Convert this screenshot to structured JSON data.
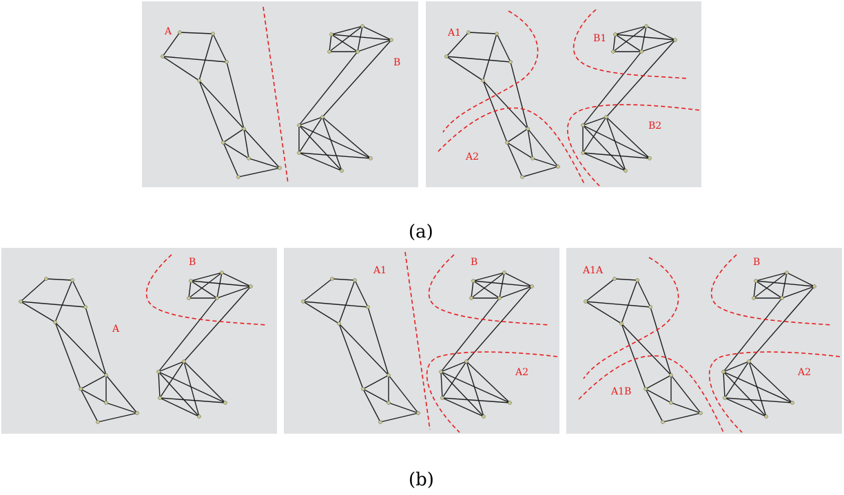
{
  "captions": {
    "a": "(a)",
    "b": "(b)"
  },
  "colors": {
    "panel_bg": "#dfe1e3",
    "edge": "#1d1d1d",
    "partition_line": "#e81c1c",
    "label": "#e81c1c"
  },
  "panels": [
    {
      "id": "a1",
      "labels": [
        "A",
        "B"
      ]
    },
    {
      "id": "a2",
      "labels": [
        "A1",
        "B1",
        "B2",
        "A2"
      ]
    },
    {
      "id": "b1",
      "labels": [
        "B",
        "A"
      ]
    },
    {
      "id": "b2",
      "labels": [
        "A1",
        "B",
        "A2"
      ]
    },
    {
      "id": "b3",
      "labels": [
        "A1A",
        "B",
        "A2",
        "A1B"
      ]
    }
  ]
}
